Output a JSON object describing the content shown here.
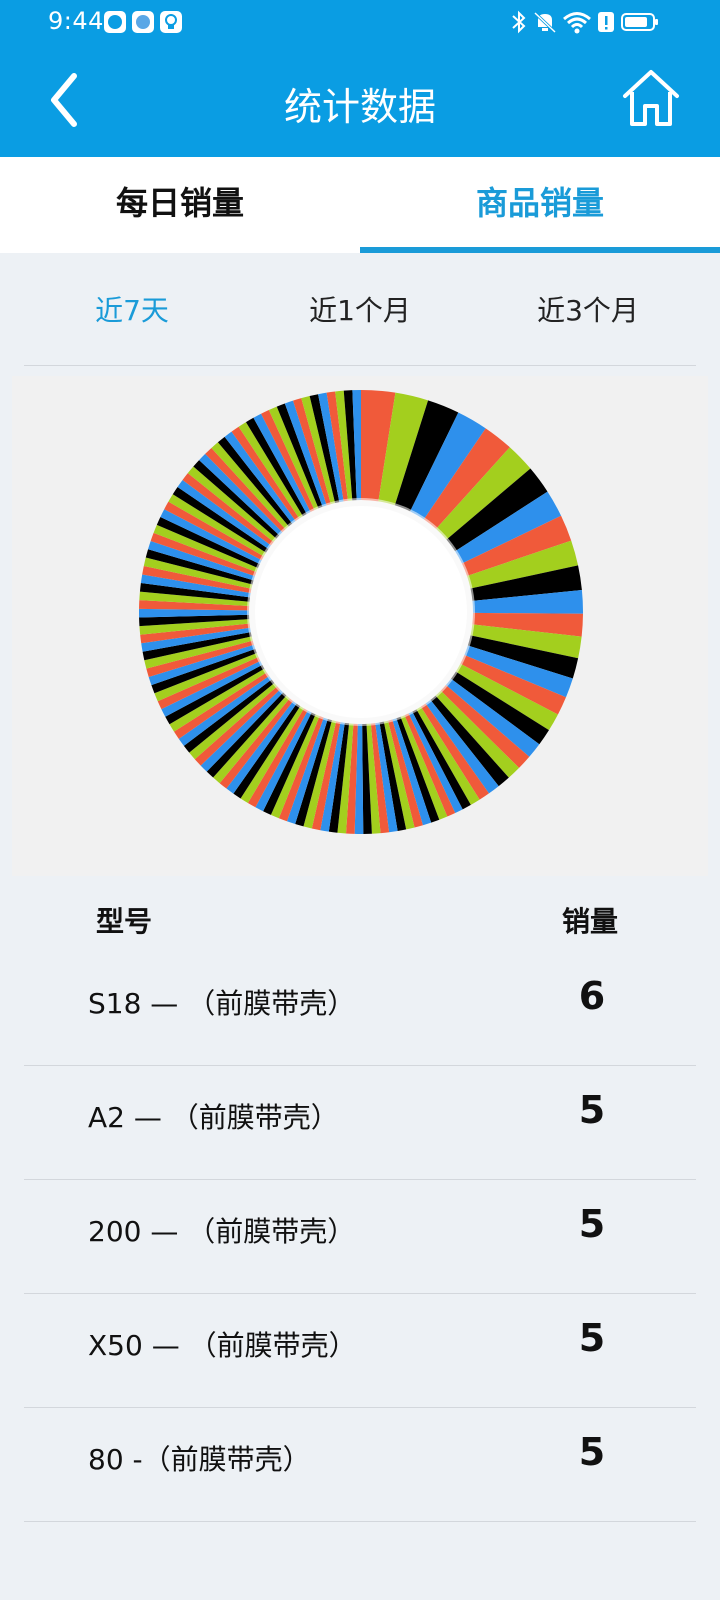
{
  "status": {
    "time": "9:44"
  },
  "header": {
    "title": "统计数据",
    "colors": {
      "bar": "#0a9de3",
      "accent": "#1a9bd8"
    }
  },
  "tabs": [
    {
      "label": "每日销量",
      "active": false
    },
    {
      "label": "商品销量",
      "active": true
    }
  ],
  "ranges": [
    {
      "label": "近7天",
      "active": true
    },
    {
      "label": "近1个月",
      "active": false
    },
    {
      "label": "近3个月",
      "active": false
    }
  ],
  "chart_data": {
    "type": "pie",
    "style": "donut",
    "segment_count": 120,
    "palette": [
      "#f05a3a",
      "#a3cf1e",
      "#000000",
      "#2e90ec"
    ],
    "note_values": "Many thin slices; largest slices appear at the start (top, clockwise)"
  },
  "table": {
    "headers": {
      "model": "型号",
      "sales": "销量"
    },
    "rows": [
      {
        "model": "S18 — （前膜带壳）",
        "sales": "6"
      },
      {
        "model": "A2 — （前膜带壳）",
        "sales": "5"
      },
      {
        "model": "200 — （前膜带壳）",
        "sales": "5"
      },
      {
        "model": "X50 — （前膜带壳）",
        "sales": "5"
      },
      {
        "model": "80 -（前膜带壳）",
        "sales": "5"
      }
    ]
  }
}
